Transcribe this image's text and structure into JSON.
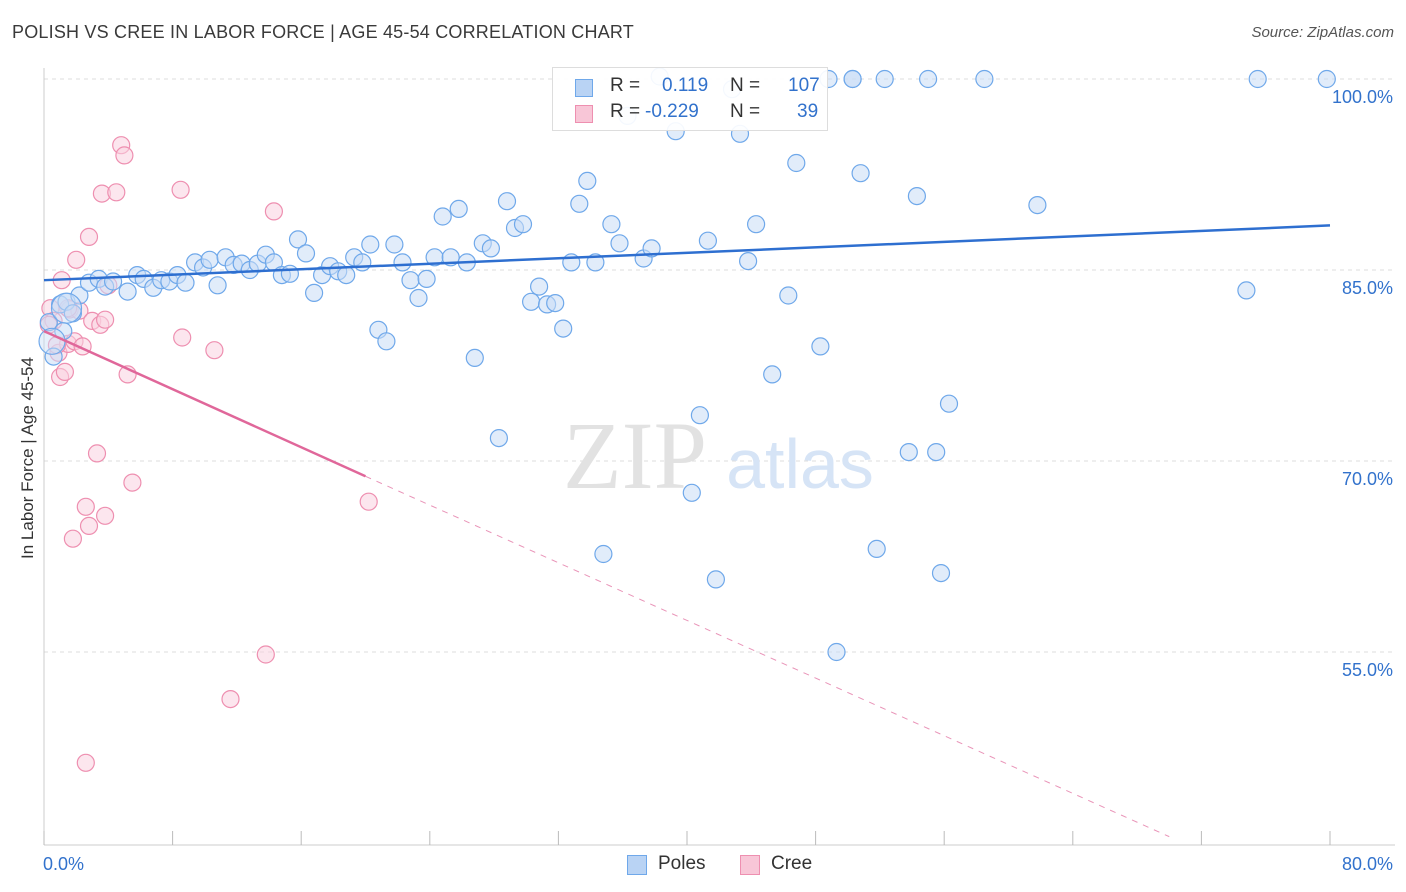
{
  "header": {
    "title": "POLISH VS CREE IN LABOR FORCE | AGE 45-54 CORRELATION CHART",
    "source": "Source: ZipAtlas.com"
  },
  "legend": {
    "r_label": "R =",
    "n_label": "N =",
    "rows": [
      {
        "r": "0.119",
        "n": "107",
        "color": "#6fa8ea",
        "fill": "#b9d3f4"
      },
      {
        "r": "-0.229",
        "n": "39",
        "color": "#ee8fb0",
        "fill": "#f8c6d7"
      }
    ],
    "bottom": [
      "Poles",
      "Cree"
    ]
  },
  "watermark": {
    "zip": "ZIP",
    "atlas": "atlas"
  },
  "colors": {
    "poles_line": "#2e6fd0",
    "poles_point": "#6fa8ea",
    "poles_fill": "#c9ddf6",
    "cree_line": "#e0679a",
    "cree_point": "#ee8fb0",
    "cree_fill": "#f9d2e0",
    "tick_label": "#3272cc"
  },
  "chart_data": {
    "type": "scatter",
    "title": "POLISH VS CREE IN LABOR FORCE | AGE 45-54 CORRELATION CHART",
    "xlabel": "",
    "ylabel": "In Labor Force | Age 45-54",
    "xlim": [
      0,
      80
    ],
    "ylim": [
      40,
      102
    ],
    "x_tick_labels": [
      "0.0%",
      "80.0%"
    ],
    "y_ticks": [
      55,
      70,
      85,
      100
    ],
    "y_tick_labels": [
      "55.0%",
      "70.0%",
      "85.0%",
      "100.0%"
    ],
    "grid": true,
    "series": [
      {
        "name": "Poles",
        "r": 0.119,
        "n": 107,
        "trend": {
          "x": [
            0,
            80
          ],
          "y": [
            84.2,
            88.5
          ],
          "style": "solid"
        },
        "points": [
          [
            0.6,
            78.2
          ],
          [
            1.0,
            82.3
          ],
          [
            1.4,
            82.5
          ],
          [
            1.8,
            81.6
          ],
          [
            2.2,
            83.0
          ],
          [
            2.8,
            84.0
          ],
          [
            3.4,
            84.3
          ],
          [
            3.8,
            83.7
          ],
          [
            4.3,
            84.1
          ],
          [
            5.2,
            83.3
          ],
          [
            5.8,
            84.6
          ],
          [
            6.2,
            84.3
          ],
          [
            6.8,
            83.6
          ],
          [
            7.3,
            84.2
          ],
          [
            7.8,
            84.1
          ],
          [
            8.3,
            84.6
          ],
          [
            8.8,
            84.0
          ],
          [
            9.4,
            85.6
          ],
          [
            9.9,
            85.2
          ],
          [
            10.3,
            85.8
          ],
          [
            10.8,
            83.8
          ],
          [
            11.3,
            86.0
          ],
          [
            11.8,
            85.4
          ],
          [
            12.3,
            85.5
          ],
          [
            12.8,
            85.0
          ],
          [
            13.3,
            85.5
          ],
          [
            13.8,
            86.2
          ],
          [
            14.3,
            85.6
          ],
          [
            14.8,
            84.6
          ],
          [
            15.3,
            84.7
          ],
          [
            15.8,
            87.4
          ],
          [
            16.3,
            86.3
          ],
          [
            16.8,
            83.2
          ],
          [
            17.3,
            84.6
          ],
          [
            17.8,
            85.3
          ],
          [
            18.3,
            84.9
          ],
          [
            18.8,
            84.6
          ],
          [
            19.3,
            86.0
          ],
          [
            19.8,
            85.6
          ],
          [
            20.3,
            87.0
          ],
          [
            20.8,
            80.3
          ],
          [
            21.3,
            79.4
          ],
          [
            21.8,
            87.0
          ],
          [
            22.3,
            85.6
          ],
          [
            22.8,
            84.2
          ],
          [
            23.3,
            82.8
          ],
          [
            23.8,
            84.3
          ],
          [
            24.3,
            86.0
          ],
          [
            24.8,
            89.2
          ],
          [
            25.3,
            86.0
          ],
          [
            25.8,
            89.8
          ],
          [
            26.3,
            85.6
          ],
          [
            26.8,
            78.1
          ],
          [
            27.3,
            87.1
          ],
          [
            27.8,
            86.7
          ],
          [
            28.3,
            71.8
          ],
          [
            28.8,
            90.4
          ],
          [
            29.3,
            88.3
          ],
          [
            29.8,
            88.6
          ],
          [
            30.3,
            82.5
          ],
          [
            30.8,
            83.7
          ],
          [
            31.3,
            82.3
          ],
          [
            31.8,
            82.4
          ],
          [
            32.3,
            80.4
          ],
          [
            32.8,
            85.6
          ],
          [
            33.3,
            90.2
          ],
          [
            33.8,
            92.0
          ],
          [
            34.3,
            85.6
          ],
          [
            34.8,
            62.7
          ],
          [
            35.3,
            88.6
          ],
          [
            35.8,
            87.1
          ],
          [
            36.3,
            97.1
          ],
          [
            37.3,
            85.9
          ],
          [
            37.8,
            86.7
          ],
          [
            38.3,
            100.2
          ],
          [
            39.3,
            95.9
          ],
          [
            40.3,
            67.5
          ],
          [
            40.8,
            73.6
          ],
          [
            41.3,
            87.3
          ],
          [
            41.8,
            60.7
          ],
          [
            42.8,
            99.2
          ],
          [
            43.3,
            95.7
          ],
          [
            43.8,
            85.7
          ],
          [
            44.3,
            88.6
          ],
          [
            45.3,
            76.8
          ],
          [
            46.3,
            83.0
          ],
          [
            46.8,
            93.4
          ],
          [
            48.3,
            79.0
          ],
          [
            48.8,
            100.0
          ],
          [
            49.3,
            55.0
          ],
          [
            50.3,
            100.0
          ],
          [
            50.8,
            92.6
          ],
          [
            50.3,
            100.0
          ],
          [
            51.8,
            63.1
          ],
          [
            52.3,
            100.0
          ],
          [
            53.8,
            70.7
          ],
          [
            54.3,
            90.8
          ],
          [
            55.0,
            100.0
          ],
          [
            55.5,
            70.7
          ],
          [
            55.8,
            61.2
          ],
          [
            56.3,
            74.5
          ],
          [
            58.5,
            100.0
          ],
          [
            61.8,
            90.1
          ],
          [
            74.8,
            83.4
          ],
          [
            75.5,
            100.0
          ],
          [
            79.8,
            100.0
          ],
          [
            0.3,
            80.9
          ],
          [
            1.2,
            80.2
          ]
        ]
      },
      {
        "name": "Cree",
        "r": -0.229,
        "n": 39,
        "trend": {
          "x": [
            0,
            20
          ],
          "y": [
            80.2,
            68.8
          ],
          "style": "solid",
          "extend_to": [
            70,
            40.5
          ],
          "extend_style": "dashed"
        },
        "points": [
          [
            0.4,
            82.0
          ],
          [
            0.6,
            81.0
          ],
          [
            0.9,
            78.5
          ],
          [
            1.0,
            76.6
          ],
          [
            1.1,
            84.2
          ],
          [
            1.3,
            77.0
          ],
          [
            1.5,
            79.2
          ],
          [
            1.6,
            81.9
          ],
          [
            1.8,
            63.9
          ],
          [
            1.9,
            79.4
          ],
          [
            2.0,
            85.8
          ],
          [
            2.2,
            81.8
          ],
          [
            2.4,
            79.0
          ],
          [
            2.6,
            66.4
          ],
          [
            2.6,
            46.3
          ],
          [
            2.8,
            87.6
          ],
          [
            2.8,
            64.9
          ],
          [
            3.0,
            81.0
          ],
          [
            3.3,
            70.6
          ],
          [
            3.5,
            80.7
          ],
          [
            3.6,
            91.0
          ],
          [
            3.8,
            81.1
          ],
          [
            3.8,
            65.7
          ],
          [
            4.0,
            83.8
          ],
          [
            4.5,
            91.1
          ],
          [
            4.8,
            94.8
          ],
          [
            5.0,
            94.0
          ],
          [
            5.2,
            76.8
          ],
          [
            5.5,
            68.3
          ],
          [
            8.5,
            91.3
          ],
          [
            8.6,
            79.7
          ],
          [
            10.6,
            78.7
          ],
          [
            11.6,
            51.3
          ],
          [
            13.8,
            54.8
          ],
          [
            14.3,
            89.6
          ],
          [
            20.2,
            66.8
          ],
          [
            0.3,
            80.7
          ],
          [
            0.8,
            79.1
          ],
          [
            1.5,
            82.0
          ]
        ]
      }
    ]
  }
}
